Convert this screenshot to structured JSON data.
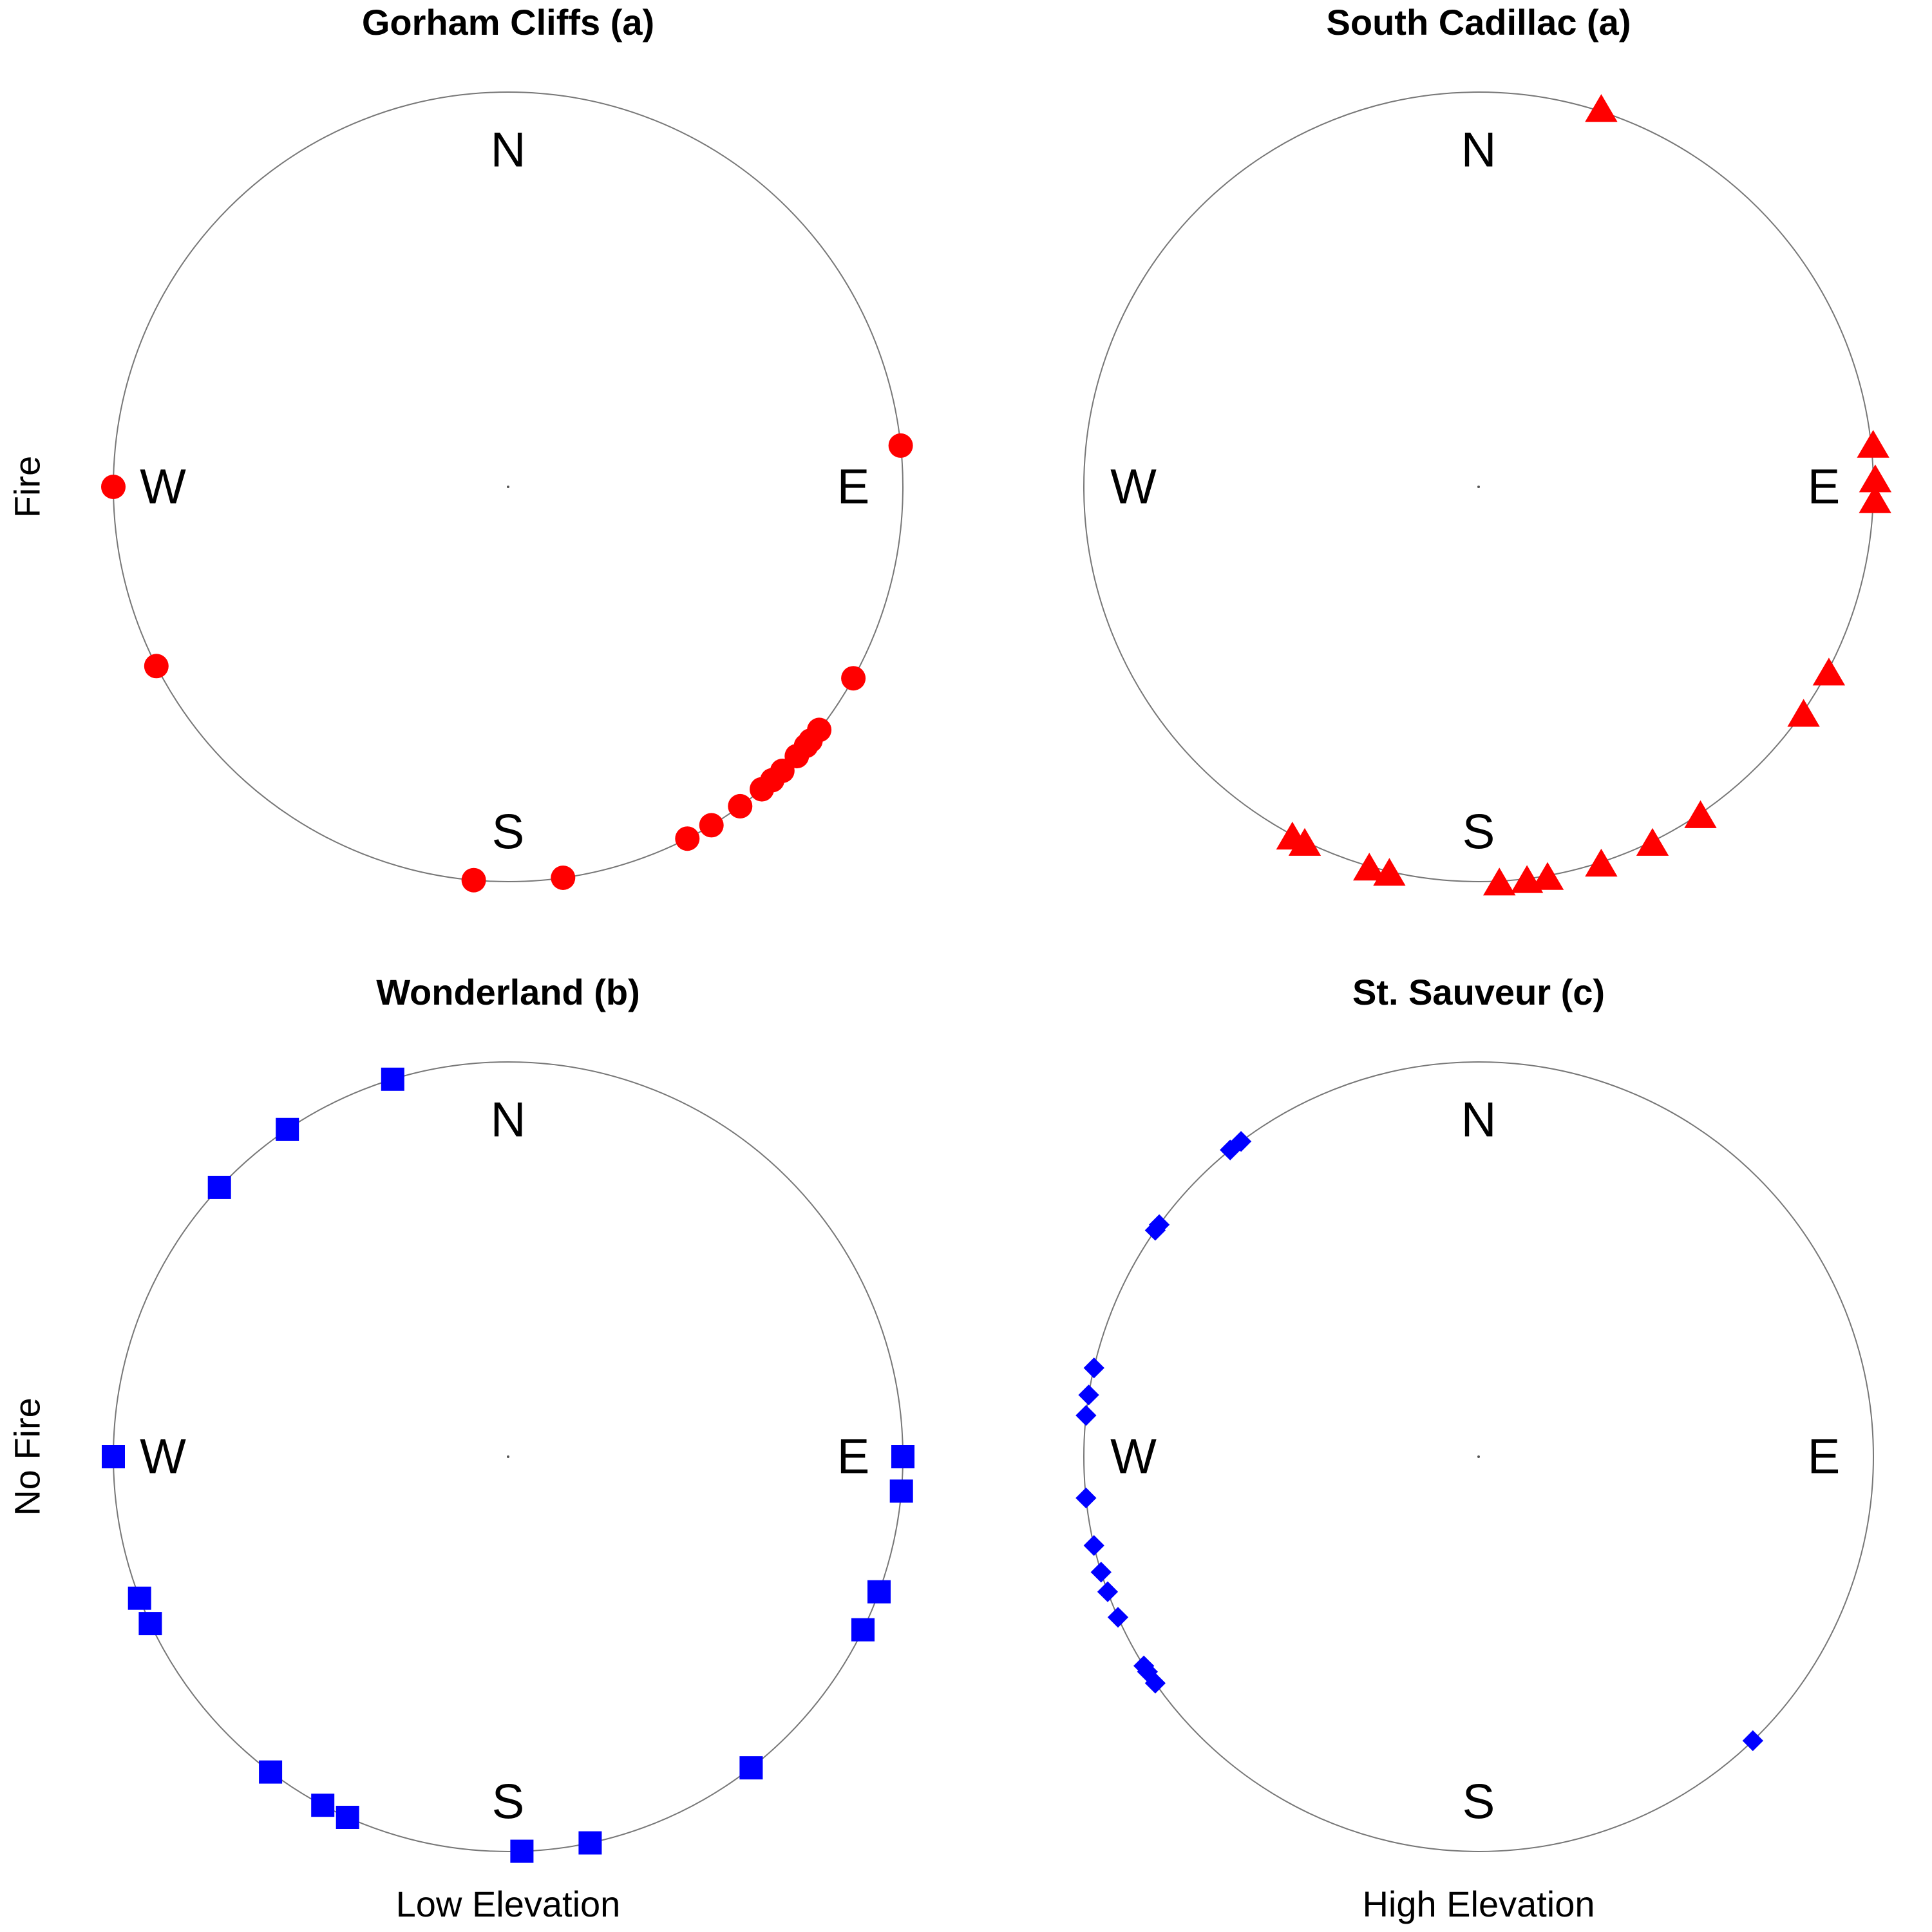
{
  "row_labels": [
    "Fire",
    "No Fire"
  ],
  "column_labels": [
    "Low Elevation",
    "High Elevation"
  ],
  "compass_labels": {
    "n": "N",
    "e": "E",
    "s": "S",
    "w": "W"
  },
  "chart_data": [
    {
      "type": "scatter",
      "projection": "circular",
      "unit": "degrees clockwise from north",
      "title": "Gorham Cliffs (a)",
      "marker": "circle",
      "color": "#ff0000",
      "grid": false,
      "legend": "none",
      "series": [
        {
          "values": [
            84,
            270,
            243,
            153,
            119,
            128,
            172,
            185,
            144,
            140,
            130,
            133,
            138,
            149,
            131,
            136
          ]
        }
      ]
    },
    {
      "type": "scatter",
      "projection": "circular",
      "unit": "degrees clockwise from north",
      "title": "South Cadillac (a)",
      "marker": "triangle",
      "color": "#ff0000",
      "grid": false,
      "legend": "none",
      "series": [
        {
          "values": [
            18,
            84,
            89,
            92,
            118,
            125,
            146,
            154,
            162,
            170,
            173,
            177,
            193,
            196,
            206,
            208
          ]
        }
      ]
    },
    {
      "type": "scatter",
      "projection": "circular",
      "unit": "degrees clockwise from north",
      "title": "Wonderland (b)",
      "marker": "square",
      "color": "#0000ff",
      "grid": false,
      "legend": "none",
      "series": [
        {
          "values": [
            343,
            326,
            313,
            270,
            90,
            95,
            110,
            116,
            245,
            249,
            142,
            168,
            178,
            204,
            208,
            217
          ]
        }
      ]
    },
    {
      "type": "scatter",
      "projection": "circular",
      "unit": "degrees clockwise from north",
      "title": "St. Sauveur (c)",
      "marker": "diamond",
      "color": "#0000ff",
      "grid": false,
      "legend": "none",
      "series": [
        {
          "values": [
            323,
            321,
            306,
            305,
            283,
            279,
            276,
            264,
            257,
            253,
            250,
            246,
            237,
            235,
            238,
            136
          ]
        }
      ]
    }
  ]
}
